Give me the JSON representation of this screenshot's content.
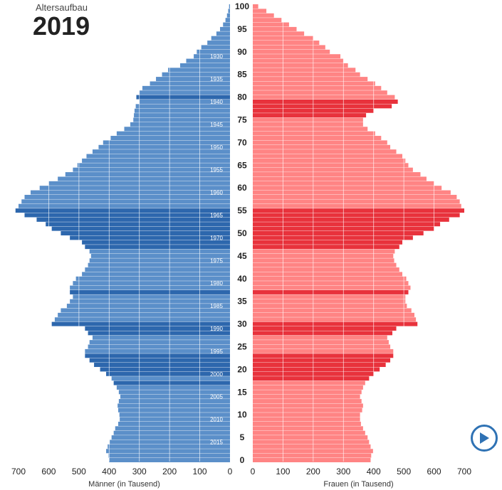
{
  "header": {
    "subtitle": "Altersaufbau",
    "year": "2019"
  },
  "colors": {
    "male": "#5b8fc9",
    "male_dark": "#2d67ad",
    "female": "#ff8484",
    "female_dark": "#e8323c",
    "accent": "#2f72b4"
  },
  "controls": {
    "play_icon": "play-icon"
  },
  "chart_data": {
    "type": "bar",
    "orientation": "horizontal-pyramid",
    "title": "Altersaufbau",
    "xlim": [
      0,
      700
    ],
    "x_ticks": [
      700,
      600,
      500,
      400,
      300,
      200,
      100,
      0
    ],
    "female_x_ticks": [
      0,
      100,
      200,
      300,
      400,
      500,
      600,
      700
    ],
    "age_ticks": [
      0,
      5,
      10,
      15,
      20,
      25,
      30,
      35,
      40,
      45,
      50,
      55,
      60,
      65,
      70,
      75,
      80,
      85,
      90,
      95,
      100
    ],
    "birth_year_ticks": [
      "2015",
      "2010",
      "2005",
      "2000",
      "1995",
      "1990",
      "1985",
      "1980",
      "1975",
      "1970",
      "1965",
      "1960",
      "1955",
      "1950",
      "1945",
      "1940",
      "1935",
      "1930"
    ],
    "x_label_left": "Männer (in Tausend)",
    "x_label_right": "Frauen (in Tausend)",
    "ages": [
      0,
      1,
      2,
      3,
      4,
      5,
      6,
      7,
      8,
      9,
      10,
      11,
      12,
      13,
      14,
      15,
      16,
      17,
      18,
      19,
      20,
      21,
      22,
      23,
      24,
      25,
      26,
      27,
      28,
      29,
      30,
      31,
      32,
      33,
      34,
      35,
      36,
      37,
      38,
      39,
      40,
      41,
      42,
      43,
      44,
      45,
      46,
      47,
      48,
      49,
      50,
      51,
      52,
      53,
      54,
      55,
      56,
      57,
      58,
      59,
      60,
      61,
      62,
      63,
      64,
      65,
      66,
      67,
      68,
      69,
      70,
      71,
      72,
      73,
      74,
      75,
      76,
      77,
      78,
      79,
      80,
      81,
      82,
      83,
      84,
      85,
      86,
      87,
      88,
      89,
      90,
      91,
      92,
      93,
      94,
      95,
      96,
      97,
      98,
      99,
      100
    ],
    "series": [
      {
        "name": "Männer",
        "values": [
          400,
          402,
          410,
          405,
          398,
          392,
          385,
          380,
          370,
          365,
          366,
          370,
          372,
          368,
          363,
          368,
          375,
          385,
          392,
          410,
          430,
          450,
          465,
          480,
          480,
          470,
          465,
          455,
          470,
          480,
          590,
          580,
          570,
          560,
          540,
          530,
          520,
          530,
          530,
          520,
          510,
          490,
          480,
          470,
          465,
          460,
          465,
          480,
          490,
          530,
          560,
          590,
          610,
          640,
          680,
          710,
          700,
          690,
          680,
          660,
          630,
          600,
          570,
          545,
          520,
          505,
          490,
          475,
          455,
          435,
          420,
          395,
          375,
          350,
          330,
          320,
          318,
          316,
          312,
          300,
          310,
          300,
          290,
          265,
          245,
          225,
          205,
          165,
          145,
          120,
          110,
          95,
          75,
          62,
          45,
          33,
          23,
          15,
          10,
          6,
          3
        ]
      },
      {
        "name": "Frauen",
        "values": [
          390,
          392,
          398,
          390,
          385,
          380,
          372,
          365,
          358,
          355,
          355,
          362,
          365,
          360,
          355,
          360,
          365,
          372,
          385,
          400,
          420,
          440,
          455,
          465,
          465,
          455,
          450,
          445,
          462,
          475,
          545,
          540,
          535,
          525,
          510,
          505,
          505,
          515,
          522,
          515,
          508,
          495,
          485,
          475,
          468,
          465,
          470,
          485,
          495,
          530,
          565,
          600,
          620,
          650,
          685,
          700,
          690,
          685,
          675,
          655,
          625,
          600,
          575,
          555,
          530,
          515,
          505,
          495,
          475,
          455,
          445,
          425,
          405,
          380,
          365,
          365,
          375,
          400,
          460,
          480,
          470,
          445,
          425,
          405,
          380,
          355,
          340,
          315,
          300,
          290,
          255,
          240,
          220,
          200,
          170,
          145,
          120,
          95,
          70,
          45,
          18
        ]
      }
    ]
  }
}
